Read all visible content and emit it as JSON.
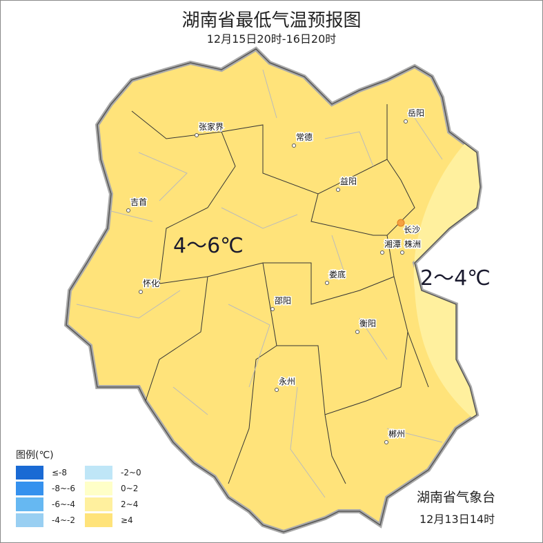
{
  "title": "湖南省最低气温预报图",
  "subtitle": "12月15日20时-16日20时",
  "regions": [
    {
      "label": "4～6℃",
      "color": "#ffe37a"
    },
    {
      "label": "2～4℃",
      "color": "#fff09e"
    }
  ],
  "cities": [
    {
      "name": "岳阳",
      "capital": false
    },
    {
      "name": "张家界",
      "capital": false
    },
    {
      "name": "常德",
      "capital": false
    },
    {
      "name": "益阳",
      "capital": false
    },
    {
      "name": "吉首",
      "capital": false
    },
    {
      "name": "长沙",
      "capital": true
    },
    {
      "name": "湘潭",
      "capital": false
    },
    {
      "name": "株洲",
      "capital": false
    },
    {
      "name": "怀化",
      "capital": false
    },
    {
      "name": "娄底",
      "capital": false
    },
    {
      "name": "邵阳",
      "capital": false
    },
    {
      "name": "衡阳",
      "capital": false
    },
    {
      "name": "永州",
      "capital": false
    },
    {
      "name": "郴州",
      "capital": false
    }
  ],
  "legend": {
    "title": "图例(℃)",
    "items": [
      {
        "label": "≤-8",
        "color": "#1a6ad4"
      },
      {
        "label": "-2~0",
        "color": "#bfe6f7"
      },
      {
        "label": "-8~-6",
        "color": "#3591ee"
      },
      {
        "label": "0~2",
        "color": "#ffffc8"
      },
      {
        "label": "-6~-4",
        "color": "#66b8f2"
      },
      {
        "label": "2~4",
        "color": "#fff09e"
      },
      {
        "label": "-4~-2",
        "color": "#99cff2"
      },
      {
        "label": "≥4",
        "color": "#ffe37a"
      }
    ]
  },
  "footer": {
    "organization": "湖南省气象台",
    "issued": "12月13日14时"
  }
}
